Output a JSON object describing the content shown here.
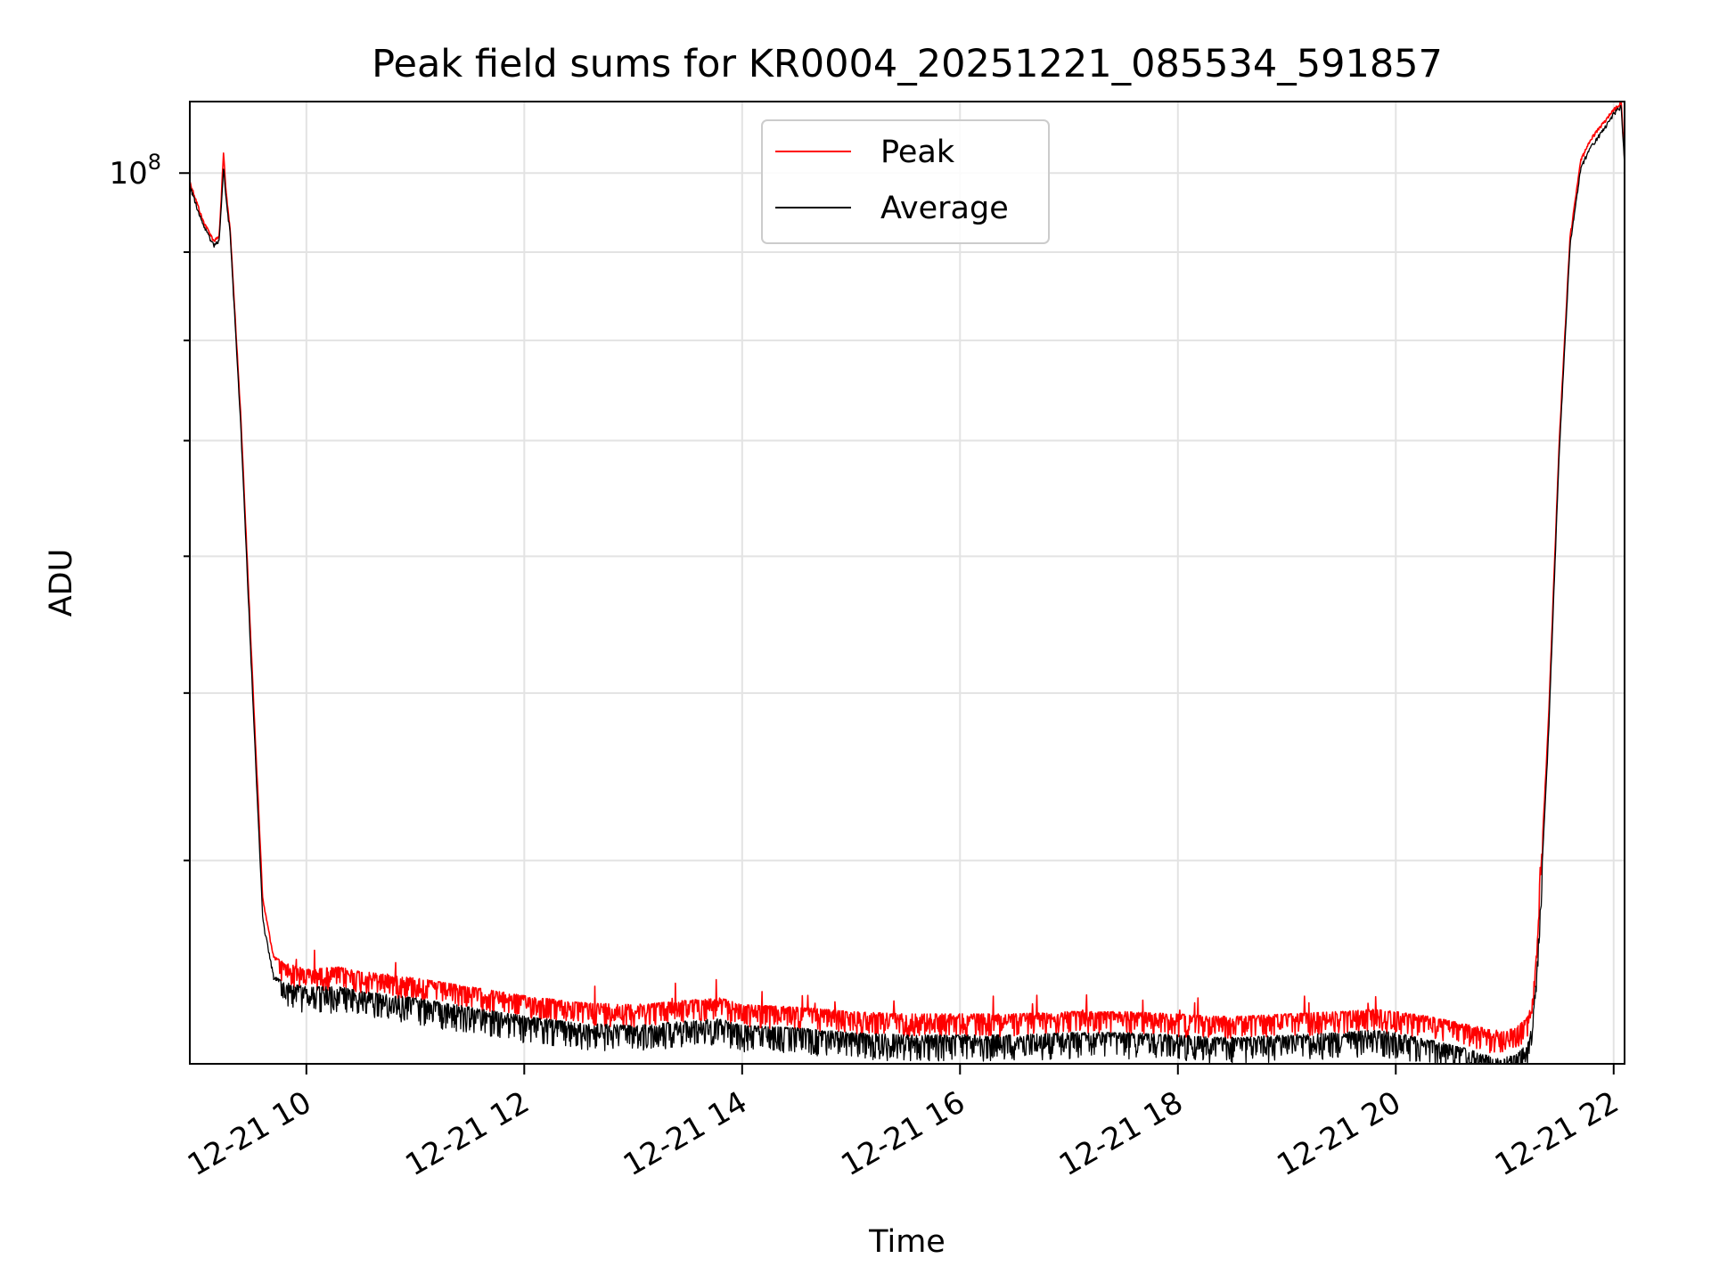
{
  "chart_data": {
    "type": "line",
    "title": "Peak field sums for KR0004_20251221_085534_591857",
    "xlabel": "Time",
    "ylabel": "ADU",
    "x_unit": "hour of 2025-12-21",
    "xlim": [
      8.93,
      22.1
    ],
    "ylim": [
      30500000,
      110000000
    ],
    "y_scale": "log",
    "grid": true,
    "legend_position": "top-center",
    "x_ticks": [
      {
        "value": 10,
        "label": "12-21 10"
      },
      {
        "value": 12,
        "label": "12-21 12"
      },
      {
        "value": 14,
        "label": "12-21 14"
      },
      {
        "value": 16,
        "label": "12-21 16"
      },
      {
        "value": 18,
        "label": "12-21 18"
      },
      {
        "value": 20,
        "label": "12-21 20"
      },
      {
        "value": 22,
        "label": "12-21 22"
      }
    ],
    "y_major_ticks": [
      {
        "value": 100000000,
        "label_base": "10",
        "label_exp": "8"
      }
    ],
    "y_minor_ticks": [
      40000000,
      50000000,
      60000000,
      70000000,
      80000000,
      90000000
    ],
    "series": [
      {
        "name": "Peak",
        "color": "#ff0000",
        "noise": 0.03,
        "x": [
          8.93,
          9.05,
          9.15,
          9.2,
          9.24,
          9.26,
          9.3,
          9.4,
          9.5,
          9.6,
          9.7,
          9.8,
          10.0,
          10.3,
          10.5,
          11.0,
          11.5,
          12.0,
          12.5,
          13.0,
          13.5,
          13.8,
          14.0,
          14.5,
          15.0,
          15.5,
          16.0,
          16.5,
          17.0,
          17.5,
          18.0,
          18.3,
          18.6,
          19.0,
          19.5,
          19.8,
          20.0,
          20.3,
          20.6,
          20.8,
          20.95,
          21.1,
          21.2,
          21.25,
          21.3,
          21.4,
          21.5,
          21.6,
          21.7,
          21.8,
          21.9,
          22.0,
          22.07,
          22.1
        ],
        "y": [
          99000000,
          94000000,
          91500000,
          92000000,
          103000000,
          98000000,
          93000000,
          72000000,
          52000000,
          38000000,
          35200000,
          34900000,
          34600000,
          34700000,
          34500000,
          34200000,
          33800000,
          33400000,
          33100000,
          33000000,
          33200000,
          33300000,
          33000000,
          32900000,
          32700000,
          32600000,
          32600000,
          32600000,
          32700000,
          32700000,
          32600000,
          32500000,
          32500000,
          32600000,
          32700000,
          32800000,
          32700000,
          32500000,
          32200000,
          32000000,
          31800000,
          32000000,
          32400000,
          33000000,
          36000000,
          48000000,
          70000000,
          92000000,
          102000000,
          105000000,
          107000000,
          109000000,
          110000000,
          102000000
        ]
      },
      {
        "name": "Average",
        "color": "#000000",
        "noise": 0.035,
        "x": [
          8.93,
          9.05,
          9.15,
          9.2,
          9.24,
          9.26,
          9.3,
          9.4,
          9.5,
          9.6,
          9.7,
          9.8,
          10.0,
          10.3,
          10.5,
          11.0,
          11.5,
          12.0,
          12.5,
          13.0,
          13.5,
          13.8,
          14.0,
          14.5,
          15.0,
          15.5,
          16.0,
          16.5,
          17.0,
          17.5,
          18.0,
          18.3,
          18.6,
          19.0,
          19.5,
          19.8,
          20.0,
          20.3,
          20.6,
          20.8,
          20.95,
          21.1,
          21.2,
          21.25,
          21.3,
          21.4,
          21.5,
          21.6,
          21.7,
          21.8,
          21.9,
          22.0,
          22.07,
          22.1
        ],
        "y": [
          98500000,
          93500000,
          91000000,
          91500000,
          101000000,
          97000000,
          92500000,
          71000000,
          51000000,
          37000000,
          34300000,
          34000000,
          33800000,
          33800000,
          33600000,
          33300000,
          32900000,
          32500000,
          32200000,
          32100000,
          32300000,
          32400000,
          32100000,
          32000000,
          31800000,
          31700000,
          31700000,
          31700000,
          31800000,
          31800000,
          31700000,
          31600000,
          31600000,
          31700000,
          31800000,
          31900000,
          31800000,
          31500000,
          31200000,
          30900000,
          30700000,
          30900000,
          31300000,
          32000000,
          35000000,
          47000000,
          69000000,
          91000000,
          101000000,
          104000000,
          106000000,
          108500000,
          109500000,
          101000000
        ]
      }
    ]
  }
}
